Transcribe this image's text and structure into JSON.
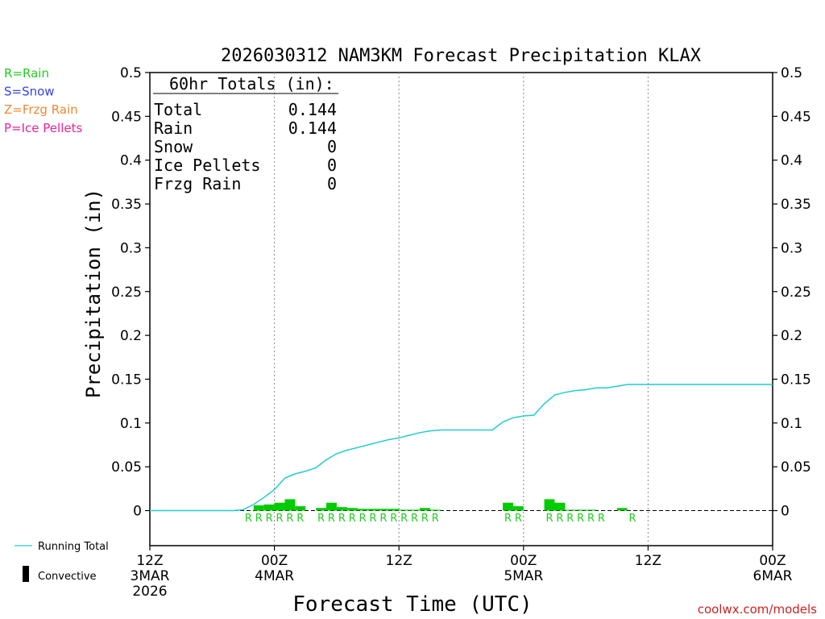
{
  "chart_data": {
    "type": "bar",
    "title": "2026030312 NAM3KM Forecast Precipitation KLAX",
    "ylabel": "Precipitation (in)",
    "xlabel": "Forecast Time (UTC)",
    "ylim": [
      -0.04,
      0.5
    ],
    "xlim_hours": [
      0,
      60
    ],
    "y_ticks": [
      "0",
      "0.05",
      "0.1",
      "0.15",
      "0.2",
      "0.25",
      "0.3",
      "0.35",
      "0.4",
      "0.45",
      "0.5"
    ],
    "y_tick_values": [
      0,
      0.05,
      0.1,
      0.15,
      0.2,
      0.25,
      0.3,
      0.35,
      0.4,
      0.45,
      0.5
    ],
    "x_ticks": [
      {
        "hour": 0,
        "label": "12Z",
        "sub": "3MAR",
        "sub2": "2026"
      },
      {
        "hour": 12,
        "label": "00Z",
        "sub": "4MAR",
        "sub2": ""
      },
      {
        "hour": 24,
        "label": "12Z",
        "sub": "",
        "sub2": ""
      },
      {
        "hour": 36,
        "label": "00Z",
        "sub": "5MAR",
        "sub2": ""
      },
      {
        "hour": 48,
        "label": "12Z",
        "sub": "",
        "sub2": ""
      },
      {
        "hour": 60,
        "label": "00Z",
        "sub": "6MAR",
        "sub2": ""
      }
    ],
    "grid_hours": [
      12,
      24,
      36,
      48
    ],
    "legend": {
      "types": [
        {
          "text": "R=Rain",
          "color": "#22cc22"
        },
        {
          "text": "S=Snow",
          "color": "#3344ee"
        },
        {
          "text": "Z=Frzg Rain",
          "color": "#ee8833"
        },
        {
          "text": "P=Ice Pellets",
          "color": "#ee2299"
        }
      ],
      "running_total_label": "Running Total",
      "convective_label": "Convective"
    },
    "totals_box": {
      "heading": "60hr Totals (in):",
      "rows": [
        {
          "name": "Total",
          "value": "0.144"
        },
        {
          "name": "Rain",
          "value": "0.144"
        },
        {
          "name": "Snow",
          "value": "0"
        },
        {
          "name": "Ice Pellets",
          "value": "0"
        },
        {
          "name": "Frzg Rain",
          "value": "0"
        }
      ]
    },
    "bars": {
      "name": "Hourly Precipitation",
      "color": "#00cc00",
      "hours": [
        10,
        11,
        12,
        13,
        14,
        16,
        17,
        18,
        19,
        20,
        21,
        22,
        23,
        24,
        25,
        26,
        27,
        34,
        35,
        38,
        39,
        40,
        41,
        42,
        45
      ],
      "values": [
        0.006,
        0.007,
        0.009,
        0.013,
        0.005,
        0.003,
        0.009,
        0.004,
        0.003,
        0.002,
        0.002,
        0.002,
        0.002,
        0.001,
        0.001,
        0.003,
        0.001,
        0.009,
        0.005,
        0.013,
        0.009,
        0.001,
        0.001,
        0.001,
        0.003
      ]
    },
    "type_labels": {
      "color": "#22cc22",
      "hours": [
        9.5,
        10.5,
        11.5,
        12.5,
        13.5,
        14.5,
        16.5,
        17.5,
        18.5,
        19.5,
        20.5,
        21.5,
        22.5,
        23.5,
        24.5,
        25.5,
        26.5,
        27.5,
        34.5,
        35.5,
        38.5,
        39.5,
        40.5,
        41.5,
        42.5,
        43.5,
        46.5
      ],
      "labels": [
        "R",
        "R",
        "R",
        "R",
        "R",
        "R",
        "R",
        "R",
        "R",
        "R",
        "R",
        "R",
        "R",
        "R",
        "R",
        "R",
        "R",
        "R",
        "R",
        "R",
        "R",
        "R",
        "R",
        "R",
        "R",
        "R",
        "R"
      ]
    },
    "running_total": {
      "name": "Running Total",
      "color": "#22cccc",
      "hours": [
        0,
        8,
        9,
        10,
        11,
        12,
        13,
        14,
        15,
        16,
        17,
        18,
        19,
        20,
        21,
        22,
        23,
        24,
        25,
        26,
        27,
        28,
        29,
        30,
        31,
        32,
        33,
        34,
        35,
        36,
        37,
        38,
        39,
        40,
        41,
        42,
        43,
        44,
        45,
        46,
        60
      ],
      "values": [
        0,
        0,
        0.001,
        0.007,
        0.015,
        0.024,
        0.037,
        0.042,
        0.045,
        0.049,
        0.058,
        0.065,
        0.069,
        0.072,
        0.075,
        0.078,
        0.081,
        0.083,
        0.086,
        0.089,
        0.091,
        0.092,
        0.092,
        0.092,
        0.092,
        0.092,
        0.092,
        0.101,
        0.106,
        0.108,
        0.109,
        0.122,
        0.132,
        0.135,
        0.137,
        0.138,
        0.14,
        0.14,
        0.142,
        0.144,
        0.144
      ]
    },
    "watermark": "coolwx.com/models"
  }
}
